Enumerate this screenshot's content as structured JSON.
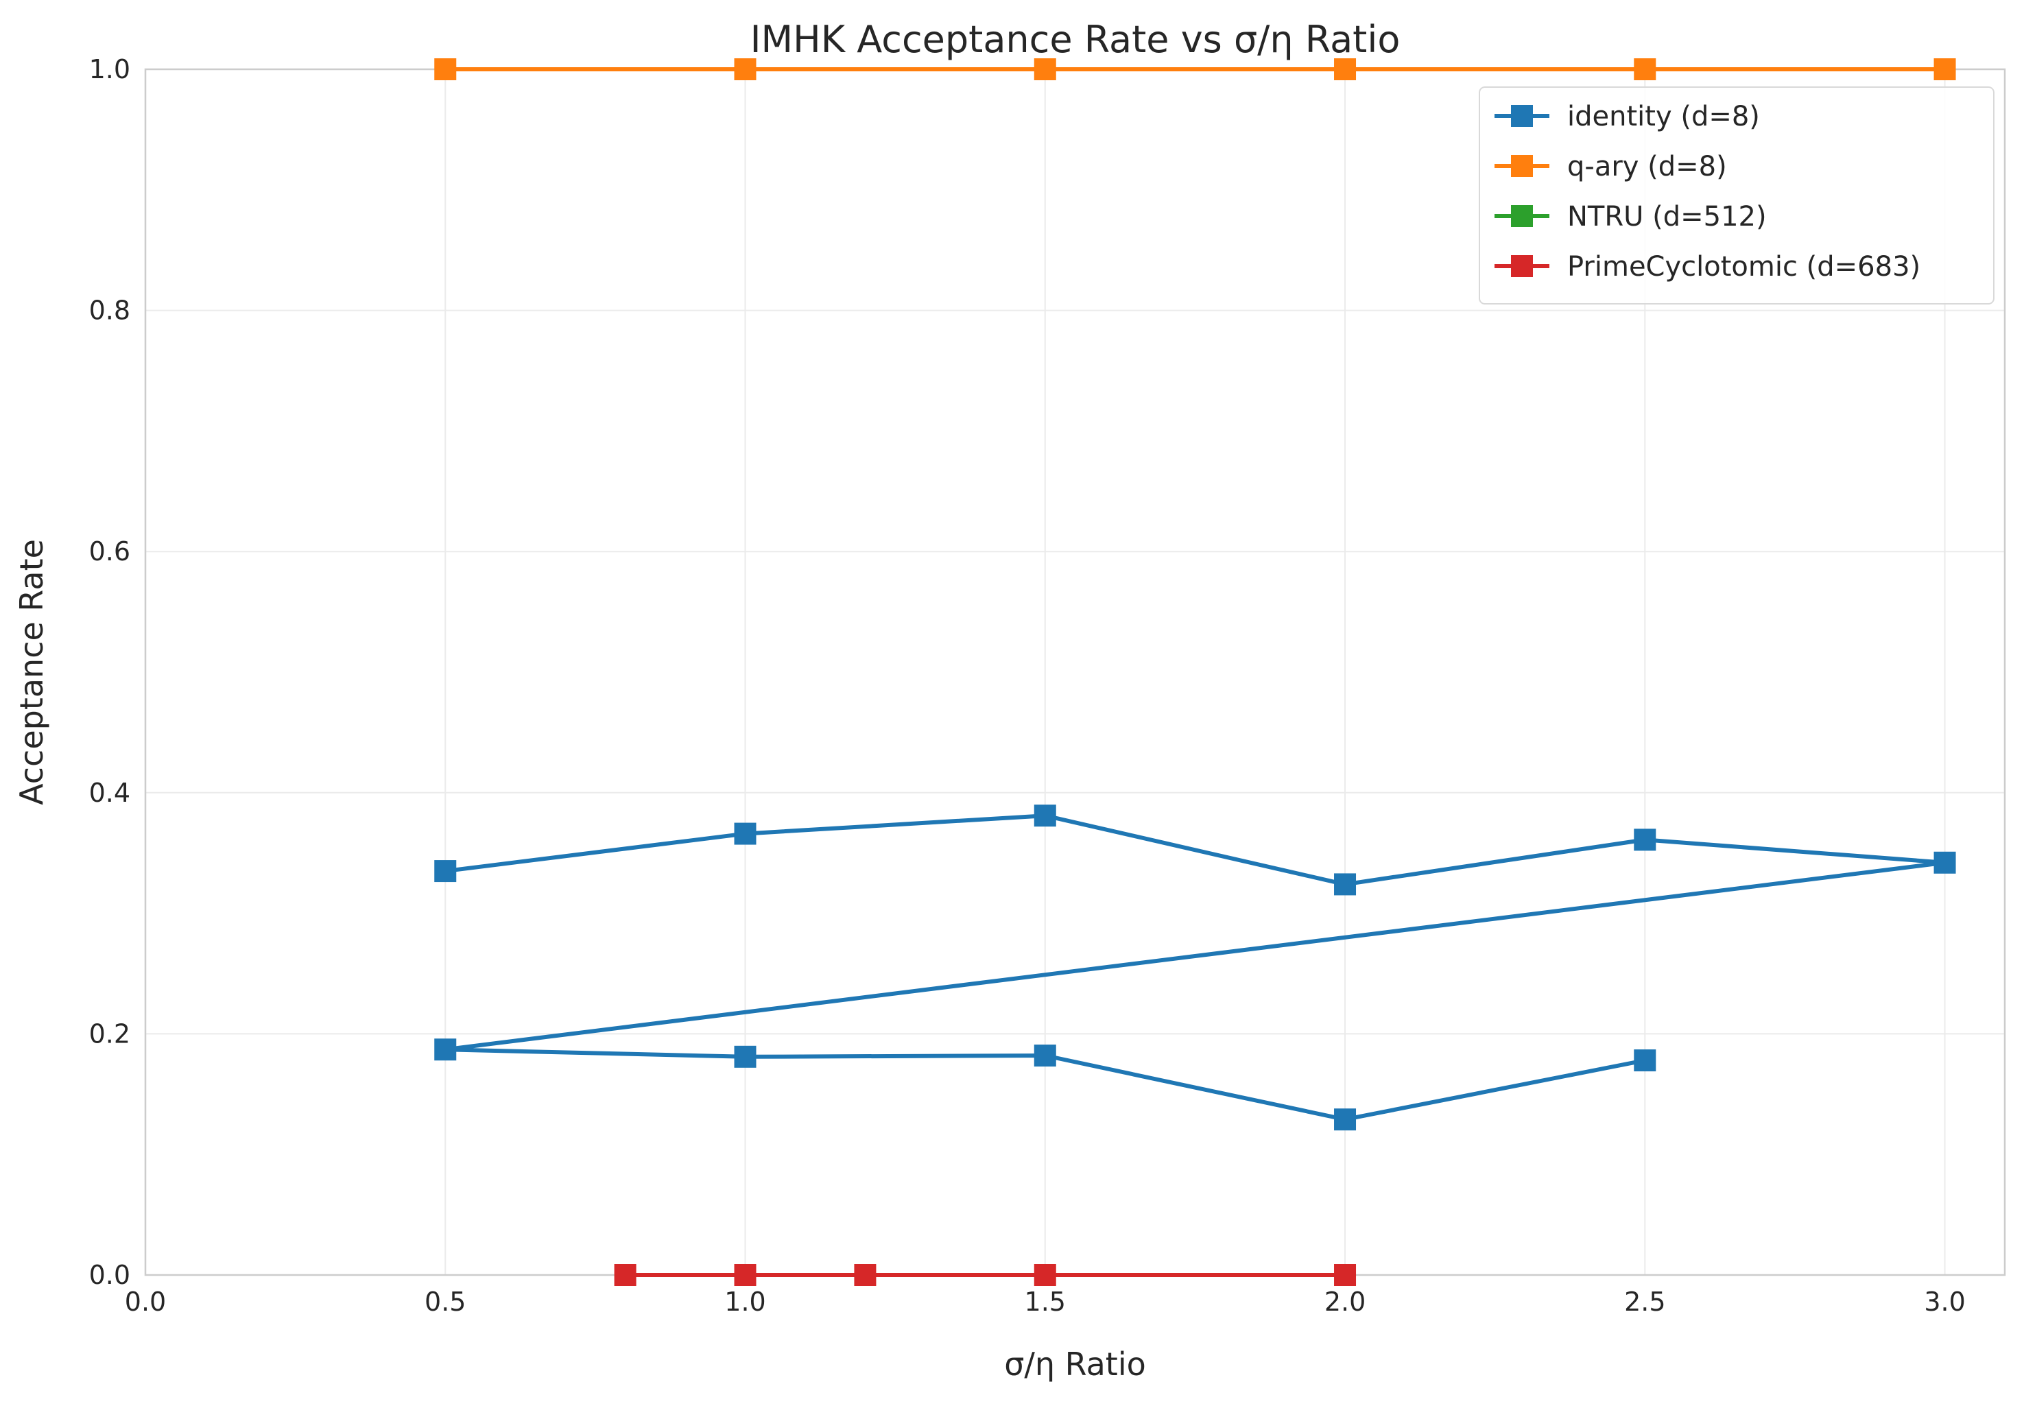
{
  "chart_data": {
    "type": "line",
    "title": "IMHK Acceptance Rate vs σ/η Ratio",
    "xlabel": "σ/η Ratio",
    "ylabel": "Acceptance Rate",
    "xlim": [
      0.0,
      3.1
    ],
    "ylim": [
      0.0,
      1.0
    ],
    "xticks": [
      "0.0",
      "0.5",
      "1.0",
      "1.5",
      "2.0",
      "2.5",
      "3.0"
    ],
    "yticks": [
      "0.0",
      "0.2",
      "0.4",
      "0.6",
      "0.8",
      "1.0"
    ],
    "grid": true,
    "legend_position": "top-right",
    "marker": "square",
    "series": [
      {
        "name": "identity (d=8)",
        "color": "#1f77b4",
        "x": [
          0.5,
          1.0,
          1.5,
          2.0,
          2.5,
          3.0,
          0.5,
          1.0,
          1.5,
          2.0,
          2.5
        ],
        "y": [
          0.335,
          0.366,
          0.381,
          0.324,
          0.361,
          0.342,
          0.187,
          0.181,
          0.182,
          0.129,
          0.178
        ]
      },
      {
        "name": "q-ary (d=8)",
        "color": "#ff7f0e",
        "x": [
          0.5,
          1.0,
          1.5,
          2.0,
          2.5,
          3.0
        ],
        "y": [
          1.0,
          1.0,
          1.0,
          1.0,
          1.0,
          1.0
        ]
      },
      {
        "name": "NTRU (d=512)",
        "color": "#2ca02c",
        "x": [],
        "y": []
      },
      {
        "name": "PrimeCyclotomic (d=683)",
        "color": "#d62728",
        "x": [
          0.8,
          1.0,
          1.2,
          1.5,
          2.0
        ],
        "y": [
          0.0,
          0.0,
          0.0,
          0.0,
          0.0
        ]
      }
    ]
  }
}
